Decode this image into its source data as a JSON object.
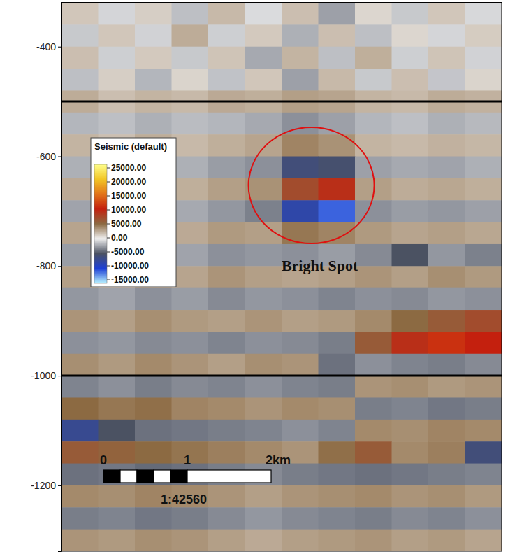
{
  "chart_data": {
    "type": "heatmap",
    "xlim": [
      0,
      5.25
    ],
    "ylim": [
      -1320,
      -320
    ],
    "yticks": [
      -400,
      -600,
      -800,
      -1000,
      -1200
    ],
    "tick_labels": "y",
    "x_edges": [
      0,
      0.4375,
      0.875,
      1.3125,
      1.75,
      2.1875,
      2.625,
      3.0625,
      3.5,
      3.9375,
      4.375,
      4.8125,
      5.25
    ],
    "y_edges": [
      -320,
      -360,
      -400,
      -440,
      -480,
      -520,
      -560,
      -600,
      -640,
      -680,
      -720,
      -760,
      -800,
      -840,
      -880,
      -920,
      -960,
      -1000,
      -1040,
      -1080,
      -1120,
      -1160,
      -1200,
      -1240,
      -1280,
      -1320
    ],
    "cells": [
      [
        1500,
        -800,
        1200,
        -1500,
        2000,
        -600,
        1800,
        -2500,
        900,
        -1200,
        1500,
        -700
      ],
      [
        -1200,
        1500,
        -900,
        2500,
        -1000,
        1400,
        -2000,
        1800,
        -1500,
        900,
        -800,
        1300
      ],
      [
        1800,
        -1000,
        1400,
        -1200,
        1600,
        -2200,
        2200,
        -1500,
        2400,
        -1000,
        1600,
        -900
      ],
      [
        -1500,
        1200,
        -1800,
        1000,
        -1400,
        1500,
        -2500,
        2000,
        -1200,
        1800,
        -1300,
        1000
      ],
      [
        2500,
        1800,
        2200,
        2000,
        2600,
        2400,
        3000,
        2800,
        2200,
        2000,
        2500,
        2300
      ],
      [
        -1800,
        -1500,
        -2000,
        -1600,
        -1800,
        -2200,
        -3000,
        -2500,
        -1800,
        -1500,
        -2000,
        -1700
      ],
      [
        2200,
        1800,
        2500,
        2000,
        2400,
        2800,
        4000,
        3500,
        2200,
        2000,
        2300,
        2100
      ],
      [
        -2000,
        -1800,
        -2400,
        -2000,
        -2600,
        -3000,
        -6000,
        -5500,
        -2500,
        -2200,
        -2400,
        -2000
      ],
      [
        2600,
        2200,
        2800,
        2400,
        3000,
        3500,
        7000,
        9000,
        3000,
        2500,
        2700,
        2400
      ],
      [
        -2400,
        -2000,
        -2600,
        -2200,
        -2800,
        -3500,
        -8000,
        -11000,
        -3000,
        -2600,
        -2800,
        -2500
      ],
      [
        2800,
        2400,
        3000,
        2600,
        3200,
        3000,
        4500,
        4000,
        3200,
        2800,
        3000,
        2700
      ],
      [
        -2600,
        -2200,
        -2800,
        -2400,
        -3000,
        -2800,
        -3000,
        -2600,
        -3200,
        -5000,
        -2800,
        -3500
      ],
      [
        3000,
        2600,
        3200,
        2800,
        3400,
        3000,
        2800,
        3000,
        3400,
        3000,
        3600,
        3200
      ],
      [
        -2800,
        -2400,
        -3000,
        -2600,
        -3200,
        -2800,
        -3000,
        -3400,
        -3000,
        -3200,
        -2800,
        -3000
      ],
      [
        3400,
        3000,
        3600,
        3200,
        3000,
        3400,
        3000,
        3200,
        3800,
        5000,
        6000,
        7000
      ],
      [
        -3000,
        -2800,
        -3200,
        -3000,
        -3400,
        -3000,
        -3200,
        -3600,
        6000,
        9000,
        11000,
        10000
      ],
      [
        3600,
        3200,
        3800,
        3400,
        3000,
        3600,
        3400,
        -4000,
        -3000,
        -3400,
        -3600,
        -3200
      ],
      [
        -3400,
        -3000,
        -3600,
        -3200,
        -3400,
        -3000,
        -3400,
        -3600,
        3400,
        3600,
        3200,
        3400
      ],
      [
        5000,
        4500,
        4800,
        4000,
        3800,
        3400,
        3800,
        3600,
        -3600,
        -3400,
        -3800,
        -3600
      ],
      [
        -7000,
        -5000,
        -4000,
        -3800,
        -3600,
        -3400,
        -3000,
        -3400,
        3800,
        3600,
        4000,
        3800
      ],
      [
        6000,
        5500,
        5000,
        4600,
        4200,
        3800,
        3400,
        4800,
        6000,
        3800,
        4200,
        -6000
      ],
      [
        -4000,
        -3800,
        -4200,
        -4000,
        -3600,
        -3200,
        -3600,
        -3800,
        -4000,
        -3800,
        -3600,
        -3400
      ],
      [
        3800,
        3600,
        4000,
        3800,
        3400,
        3000,
        3400,
        3600,
        3800,
        3400,
        3600,
        3200
      ],
      [
        -3600,
        -3400,
        -3800,
        -3600,
        -3200,
        -2800,
        -3200,
        -3400,
        -3600,
        -3200,
        -3400,
        -3000
      ],
      [
        3400,
        3200,
        3600,
        3400,
        3000,
        2600,
        3000,
        3200,
        3400,
        3000,
        3200,
        2800
      ]
    ],
    "colorbar": {
      "title": "Seismic (default)",
      "range": [
        -15000,
        25000
      ],
      "ticks": [
        {
          "value": 25000,
          "label": "25000.00"
        },
        {
          "value": 20000,
          "label": "20000.00"
        },
        {
          "value": 15000,
          "label": "15000.00"
        },
        {
          "value": 10000,
          "label": "10000.00"
        },
        {
          "value": 5000,
          "label": "5000.00"
        },
        {
          "value": 0,
          "label": "0.00"
        },
        {
          "value": -5000,
          "label": "-5000.00"
        },
        {
          "value": -10000,
          "label": "-10000.00"
        },
        {
          "value": -15000,
          "label": "-15000.00"
        }
      ]
    },
    "horizons": [
      -500,
      -1000
    ],
    "annotations": [
      {
        "text": "Bright Spot",
        "x": 3.08,
        "y": -799,
        "target_x": 2.98,
        "target_y": -653
      }
    ],
    "scale_bar": {
      "divisions": [
        0,
        0.2,
        0.4,
        0.6,
        0.8,
        1,
        2
      ],
      "ticks": [
        {
          "value": 0,
          "label": "0"
        },
        {
          "value": 1,
          "label": "1"
        },
        {
          "value": 2,
          "label": "2km"
        }
      ],
      "ratio_label": "1:42560"
    }
  }
}
